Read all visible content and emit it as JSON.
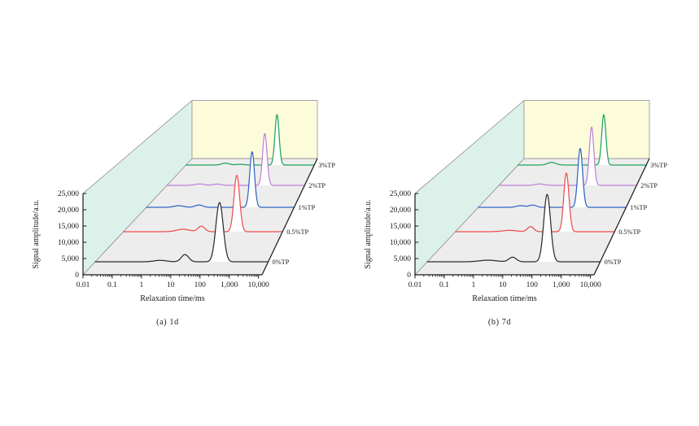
{
  "page": {
    "background": "#ffffff"
  },
  "colors": {
    "left_wall": "#dcf1ea",
    "back_wall": "#fcfcdb",
    "floor": "#ededed",
    "wall_border": "#9a9a9a",
    "axis": "#1a1a1a",
    "text": "#1a1a1a",
    "peak_fill": "#ffffff"
  },
  "chart_data": [
    {
      "type": "line",
      "projection": "3d-waterfall-perspective",
      "title": "(a) 1d",
      "xlabel": "Relaxation time/ms",
      "ylabel": "Signal amplitude/a.u.",
      "x_scale": "log",
      "x_range": [
        0.01,
        10000
      ],
      "y_range": [
        0,
        25000
      ],
      "x_tick_labels": [
        "0.01",
        "0.1",
        "1",
        "10",
        "100",
        "1,000",
        "10,000"
      ],
      "y_tick_labels": [
        "0",
        "5,000",
        "10,000",
        "15,000",
        "20,000",
        "25,000"
      ],
      "legend_position": "right-of-each-trace",
      "grid": false,
      "series": [
        {
          "name": "0%TP",
          "color": "#2e2e2e",
          "peaks": [
            {
              "t_ms": 2.0,
              "amplitude": 450,
              "sigma_log10": 0.22
            },
            {
              "t_ms": 15,
              "amplitude": 2300,
              "sigma_log10": 0.13
            },
            {
              "t_ms": 250,
              "amplitude": 18800,
              "sigma_log10": 0.13
            }
          ]
        },
        {
          "name": "0.5%TP",
          "color": "#ee4e4e",
          "peaks": [
            {
              "t_ms": 2.0,
              "amplitude": 850,
              "sigma_log10": 0.25
            },
            {
              "t_ms": 10,
              "amplitude": 1900,
              "sigma_log10": 0.13
            },
            {
              "t_ms": 230,
              "amplitude": 19400,
              "sigma_log10": 0.11
            }
          ]
        },
        {
          "name": "1%TP",
          "color": "#2f66c2",
          "peaks": [
            {
              "t_ms": 0.22,
              "amplitude": 600,
              "sigma_log10": 0.2
            },
            {
              "t_ms": 1.5,
              "amplitude": 850,
              "sigma_log10": 0.16
            },
            {
              "t_ms": 240,
              "amplitude": 20500,
              "sigma_log10": 0.1
            }
          ]
        },
        {
          "name": "2%TP",
          "color": "#bf80d8",
          "peaks": [
            {
              "t_ms": 0.28,
              "amplitude": 550,
              "sigma_log10": 0.2
            },
            {
              "t_ms": 1.7,
              "amplitude": 500,
              "sigma_log10": 0.18
            },
            {
              "t_ms": 225,
              "amplitude": 20400,
              "sigma_log10": 0.1
            }
          ]
        },
        {
          "name": "3%TP",
          "color": "#1fa55c",
          "peaks": [
            {
              "t_ms": 0.76,
              "amplitude": 800,
              "sigma_log10": 0.18
            },
            {
              "t_ms": 3.8,
              "amplitude": 300,
              "sigma_log10": 0.2
            },
            {
              "t_ms": 220,
              "amplitude": 21200,
              "sigma_log10": 0.1
            }
          ]
        }
      ]
    },
    {
      "type": "line",
      "projection": "3d-waterfall-perspective",
      "title": "(b) 7d",
      "xlabel": "Relaxation time/ms",
      "ylabel": "Signal amplitude/a.u.",
      "x_scale": "log",
      "x_range": [
        0.01,
        10000
      ],
      "y_range": [
        0,
        25000
      ],
      "x_tick_labels": [
        "0.01",
        "0.1",
        "1",
        "10",
        "100",
        "1,000",
        "10,000"
      ],
      "y_tick_labels": [
        "0",
        "5,000",
        "10,000",
        "15,000",
        "20,000",
        "25,000"
      ],
      "legend_position": "right-of-each-trace",
      "grid": false,
      "series": [
        {
          "name": "0%TP",
          "color": "#2e2e2e",
          "peaks": [
            {
              "t_ms": 1.4,
              "amplitude": 500,
              "sigma_log10": 0.3
            },
            {
              "t_ms": 10.5,
              "amplitude": 1450,
              "sigma_log10": 0.13
            },
            {
              "t_ms": 175,
              "amplitude": 21400,
              "sigma_log10": 0.12
            }
          ]
        },
        {
          "name": "0.5%TP",
          "color": "#ee4e4e",
          "peaks": [
            {
              "t_ms": 1.2,
              "amplitude": 450,
              "sigma_log10": 0.28
            },
            {
              "t_ms": 7.8,
              "amplitude": 1750,
              "sigma_log10": 0.12
            },
            {
              "t_ms": 185,
              "amplitude": 20200,
              "sigma_log10": 0.1
            }
          ]
        },
        {
          "name": "1%TP",
          "color": "#2f66c2",
          "peaks": [
            {
              "t_ms": 0.57,
              "amplitude": 600,
              "sigma_log10": 0.18
            },
            {
              "t_ms": 1.8,
              "amplitude": 800,
              "sigma_log10": 0.15
            },
            {
              "t_ms": 165,
              "amplitude": 21700,
              "sigma_log10": 0.1
            }
          ]
        },
        {
          "name": "2%TP",
          "color": "#bf80d8",
          "peaks": [
            {
              "t_ms": 0.64,
              "amplitude": 550,
              "sigma_log10": 0.2
            },
            {
              "t_ms": 132,
              "amplitude": 23000,
              "sigma_log10": 0.1
            }
          ]
        },
        {
          "name": "3%TP",
          "color": "#1fa55c",
          "peaks": [
            {
              "t_ms": 0.41,
              "amplitude": 1100,
              "sigma_log10": 0.2
            },
            {
              "t_ms": 124,
              "amplitude": 21200,
              "sigma_log10": 0.1
            }
          ]
        }
      ]
    }
  ]
}
